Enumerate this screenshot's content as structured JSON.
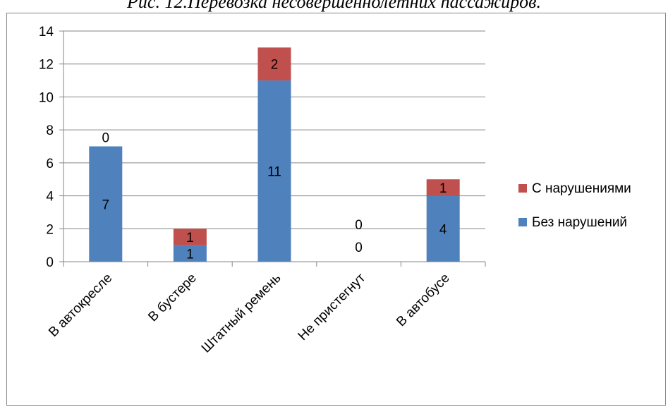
{
  "caption": "Рис. 12.Перевозка несовершеннолетних пассажиров.",
  "chart_data": {
    "type": "bar",
    "stacked": true,
    "categories": [
      "В автокресле",
      "В бустере",
      "Штатный ремень",
      "Не пристегнут",
      "В автобусе"
    ],
    "series": [
      {
        "name": "Без нарушений",
        "values": [
          7,
          1,
          11,
          0,
          4
        ],
        "color": "#4f81bd"
      },
      {
        "name": "С нарушениями",
        "values": [
          0,
          1,
          2,
          0,
          1
        ],
        "color": "#c0504d"
      }
    ],
    "ylim": [
      0,
      14
    ],
    "yticks": [
      0,
      2,
      4,
      6,
      8,
      10,
      12,
      14
    ],
    "grid": true,
    "legend": "right",
    "xlabel": "",
    "ylabel": ""
  }
}
